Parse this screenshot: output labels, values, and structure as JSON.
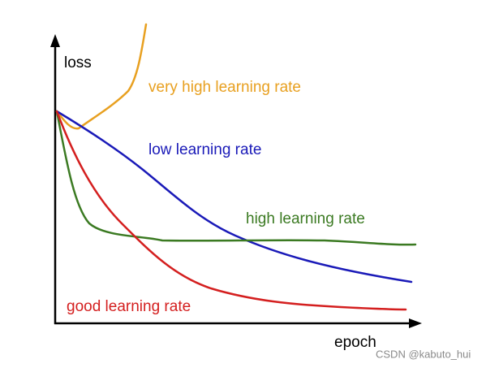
{
  "axes": {
    "y_label": "loss",
    "x_label": "epoch"
  },
  "curves": [
    {
      "label": "very high learning rate"
    },
    {
      "label": "low learning rate"
    },
    {
      "label": "high learning rate"
    },
    {
      "label": "good learning rate"
    }
  ],
  "watermark": "CSDN @kabuto_hui"
}
